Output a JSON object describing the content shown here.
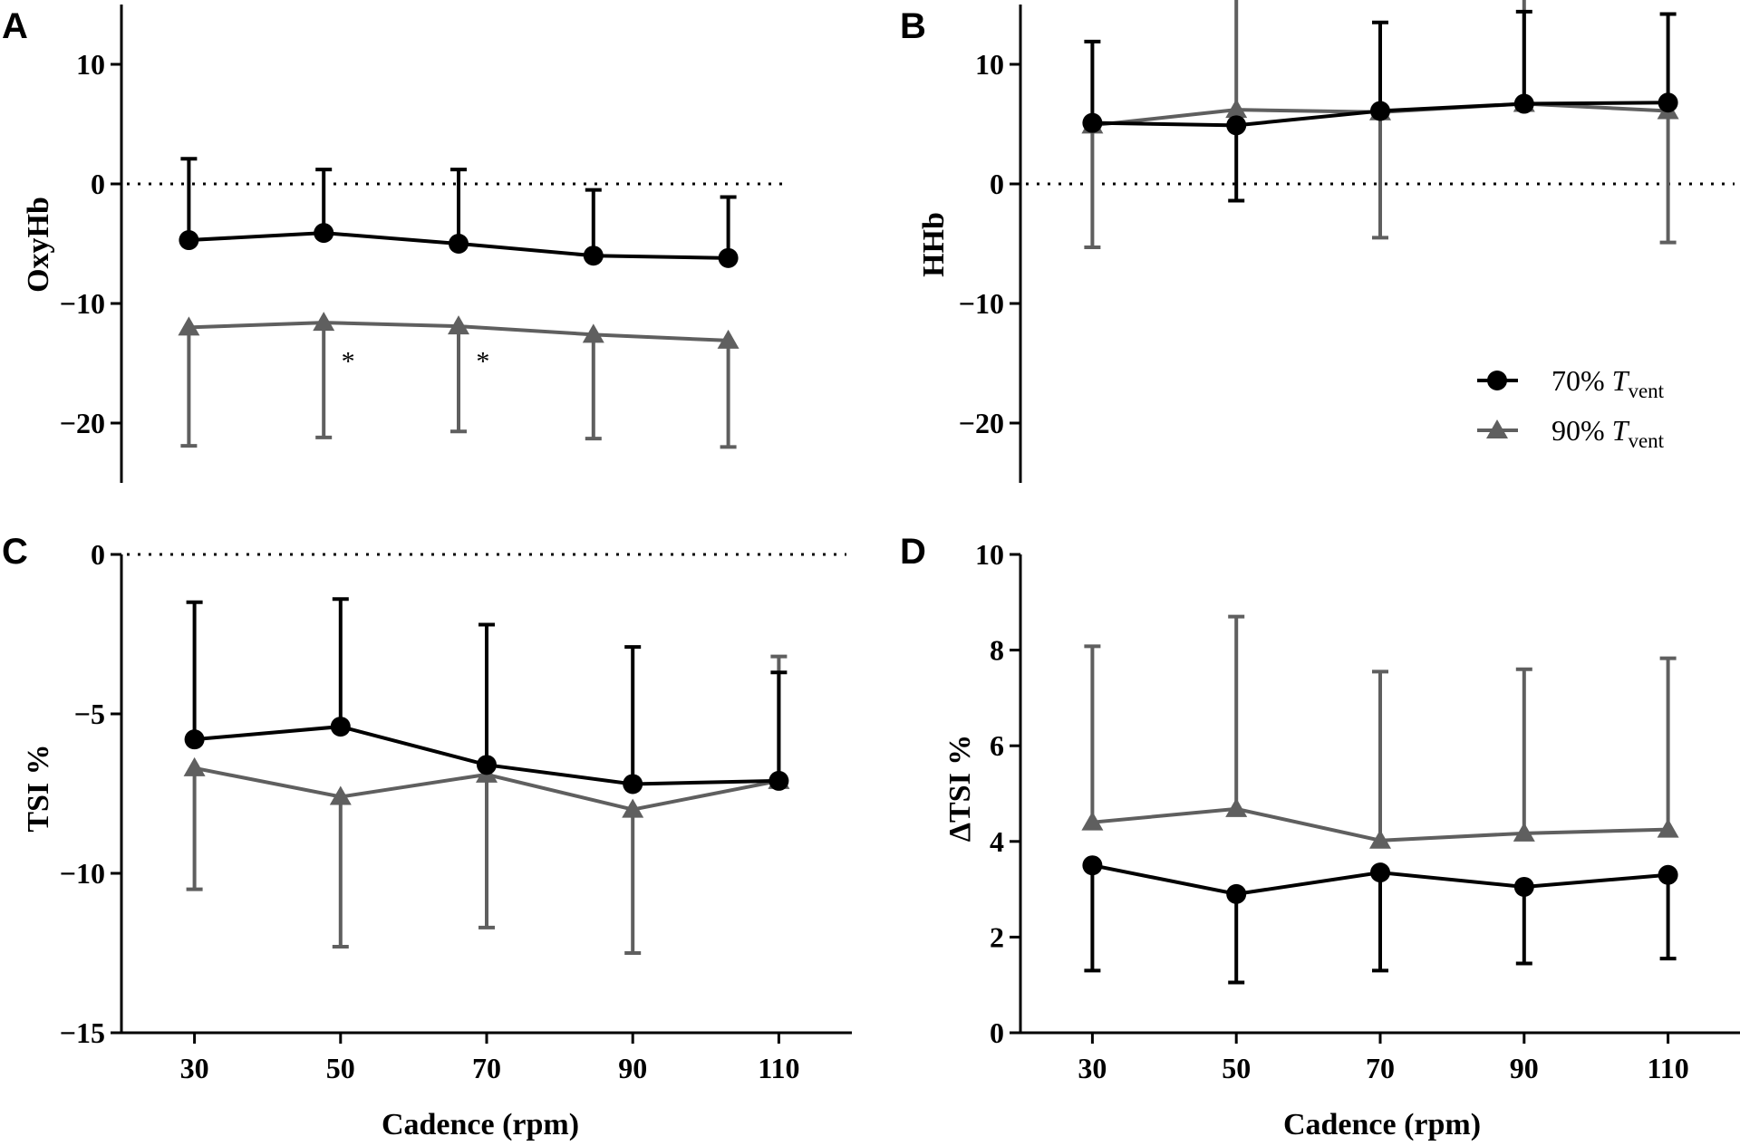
{
  "figure": {
    "legend": [
      {
        "pct": "70%",
        "var": "T",
        "sub": "vent",
        "color": "#000000",
        "marker": "circle"
      },
      {
        "pct": "90%",
        "var": "T",
        "sub": "vent",
        "color": "#5f5f5f",
        "marker": "triangle"
      }
    ]
  },
  "chart_data": [
    {
      "panel": "A",
      "type": "line",
      "xlabel": "",
      "ylabel": "OxyHb",
      "x": [
        30,
        50,
        70,
        90,
        110
      ],
      "xlim": [
        20,
        120
      ],
      "ylim": [
        -25,
        15
      ],
      "yticks": [
        -20,
        -10,
        0,
        10
      ],
      "ytick_labels": [
        "−20",
        "−10",
        "0",
        "10"
      ],
      "xticks": [],
      "xtick_labels": [],
      "zero_line": 0,
      "error_direction": "outward",
      "series": [
        {
          "name": "70% Tvent",
          "color": "#000000",
          "marker": "circle",
          "values": [
            -4.7,
            -4.1,
            -5.0,
            -6.0,
            -6.2
          ],
          "errors": [
            6.8,
            5.3,
            6.2,
            5.5,
            5.1
          ]
        },
        {
          "name": "90% Tvent",
          "color": "#5f5f5f",
          "marker": "triangle",
          "values": [
            -12.0,
            -11.6,
            -11.9,
            -12.6,
            -13.1
          ],
          "errors": [
            9.9,
            9.6,
            8.8,
            8.7,
            8.9
          ]
        }
      ],
      "annotations": [
        {
          "text": "*",
          "x": 52,
          "y": -14.2
        },
        {
          "text": "*",
          "x": 72,
          "y": -14.2
        }
      ]
    },
    {
      "panel": "B",
      "type": "line",
      "xlabel": "",
      "ylabel": "HHb",
      "x": [
        30,
        50,
        70,
        90,
        110
      ],
      "xlim": [
        20,
        120
      ],
      "ylim": [
        -25,
        15
      ],
      "yticks": [
        -20,
        -10,
        0,
        10
      ],
      "ytick_labels": [
        "−20",
        "−10",
        "0",
        "10"
      ],
      "xticks": [],
      "xtick_labels": [],
      "zero_line": 0,
      "error_direction": "outward",
      "series": [
        {
          "name": "70% Tvent",
          "color": "#000000",
          "marker": "circle",
          "values": [
            5.1,
            4.9,
            6.1,
            6.7,
            6.8
          ],
          "errors": [
            6.8,
            6.3,
            7.4,
            7.7,
            7.4
          ]
        },
        {
          "name": "90% Tvent",
          "color": "#5f5f5f",
          "marker": "triangle",
          "values": [
            4.9,
            6.2,
            6.0,
            6.7,
            6.1
          ],
          "errors": [
            10.2,
            10.3,
            10.5,
            10.9,
            11.0
          ]
        }
      ],
      "legend_position": "right"
    },
    {
      "panel": "C",
      "type": "line",
      "xlabel": "Cadence (rpm)",
      "ylabel": "TSI %",
      "x": [
        30,
        50,
        70,
        90,
        110
      ],
      "xlim": [
        20,
        120
      ],
      "ylim": [
        -15,
        0
      ],
      "yticks": [
        -15,
        -10,
        -5,
        0
      ],
      "ytick_labels": [
        "−15",
        "−10",
        "−5",
        "0"
      ],
      "xticks": [
        30,
        50,
        70,
        90,
        110
      ],
      "xtick_labels": [
        "30",
        "50",
        "70",
        "90",
        "110"
      ],
      "zero_line": 0,
      "error_direction": "outward",
      "series": [
        {
          "name": "70% Tvent",
          "color": "#000000",
          "marker": "circle",
          "values": [
            -5.8,
            -5.4,
            -6.6,
            -7.2,
            -7.1
          ],
          "errors": [
            4.3,
            4.0,
            4.4,
            4.3,
            3.4
          ]
        },
        {
          "name": "90% Tvent",
          "color": "#5f5f5f",
          "marker": "triangle",
          "values": [
            -6.7,
            -7.6,
            -6.9,
            -8.0,
            -7.1
          ],
          "errors": [
            3.8,
            4.7,
            4.8,
            4.5,
            3.9
          ]
        }
      ]
    },
    {
      "panel": "D",
      "type": "line",
      "xlabel": "Cadence (rpm)",
      "ylabel": "ΔTSI %",
      "x": [
        30,
        50,
        70,
        90,
        110
      ],
      "xlim": [
        20,
        120
      ],
      "ylim": [
        0,
        10
      ],
      "yticks": [
        0,
        2,
        4,
        6,
        8,
        10
      ],
      "ytick_labels": [
        "0",
        "2",
        "4",
        "6",
        "8",
        "10"
      ],
      "xticks": [
        30,
        50,
        70,
        90,
        110
      ],
      "xtick_labels": [
        "30",
        "50",
        "70",
        "90",
        "110"
      ],
      "error_direction": "outward",
      "series": [
        {
          "name": "70% Tvent",
          "color": "#000000",
          "marker": "circle",
          "values": [
            3.5,
            2.9,
            3.35,
            3.05,
            3.3
          ],
          "errors": [
            2.2,
            1.85,
            2.05,
            1.6,
            1.75
          ]
        },
        {
          "name": "90% Tvent",
          "color": "#5f5f5f",
          "marker": "triangle",
          "values": [
            4.4,
            4.68,
            4.02,
            4.17,
            4.25
          ],
          "errors": [
            3.68,
            4.02,
            3.53,
            3.43,
            3.58
          ]
        }
      ]
    }
  ]
}
